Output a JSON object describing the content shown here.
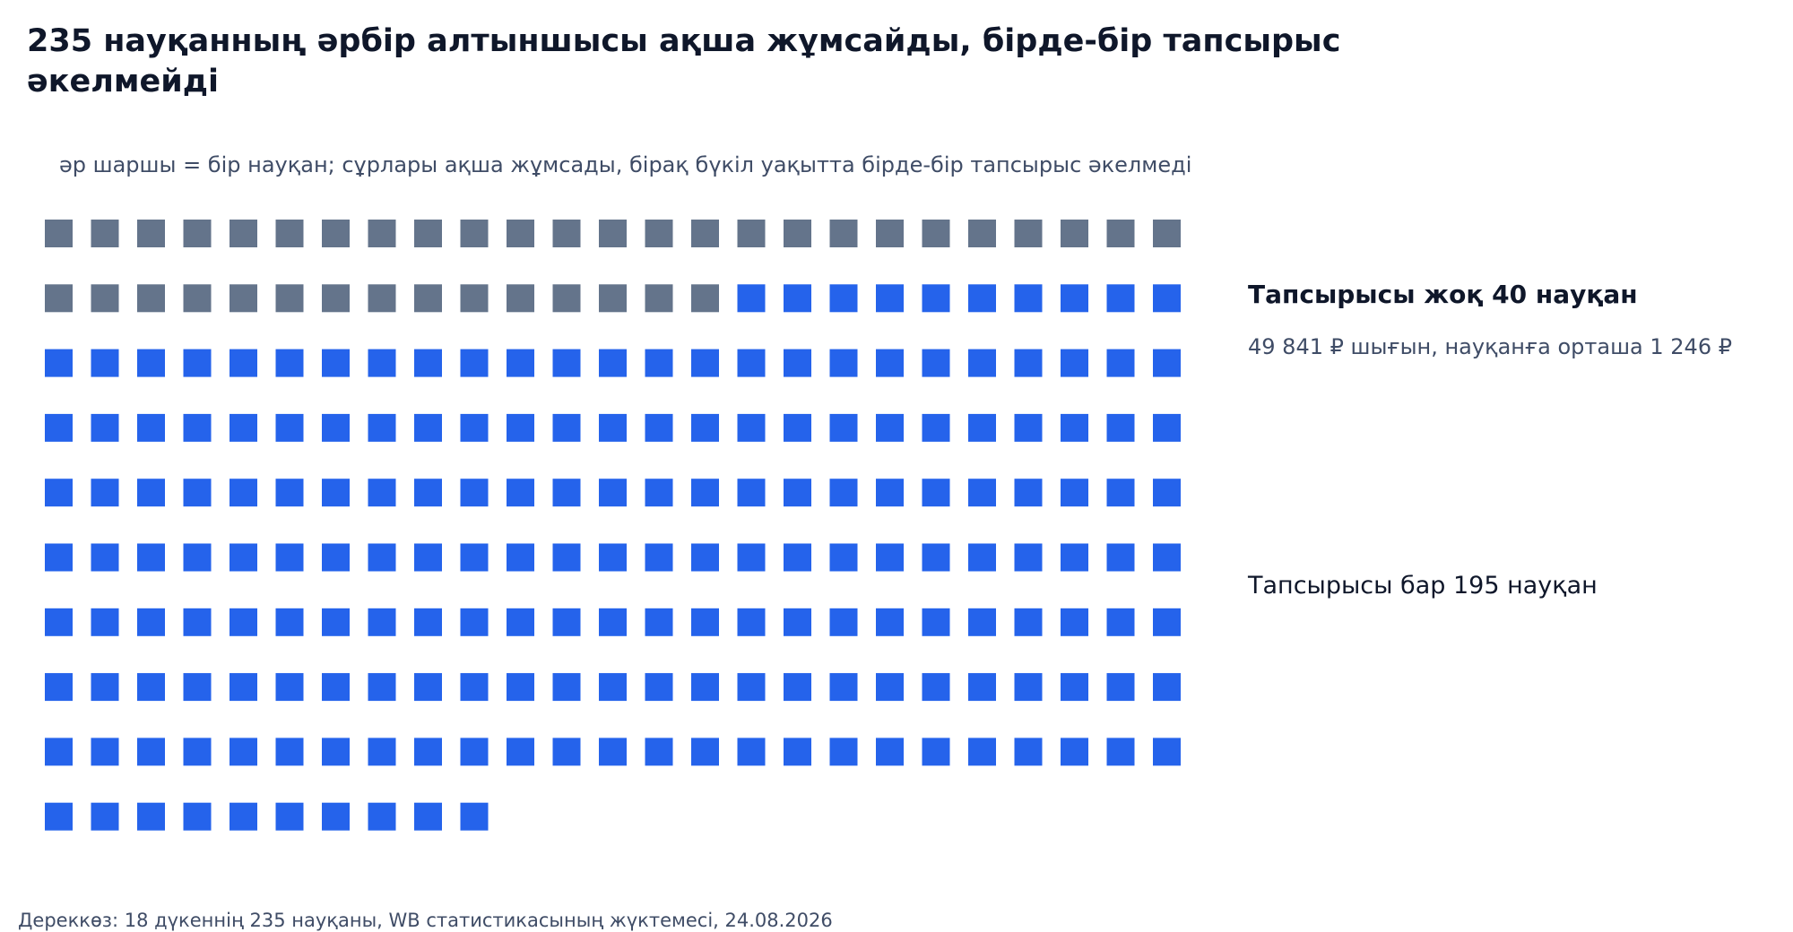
{
  "header": {
    "title": "235 науқанның әрбір алтыншысы ақша жұмсайды, бірде-бір тапсырыс әкелмейді",
    "subtitle": "әр шаршы = бір науқан; сұрлары ақша жұмсады, бірақ бүкіл уақытта бірде-бір тапсырыс әкелмеді"
  },
  "legend": {
    "no_orders_title": "Тапсырысы жоқ 40 науқан",
    "no_orders_detail": "49 841 ₽ шығын, науқанға орташа 1 246 ₽",
    "with_orders_label": "Тапсырысы бар 195 науқан"
  },
  "footer": {
    "source": "Дереккөз: 18 дүкеннің 235 науқаны, WB статистикасының жүктемесі, 24.08.2026"
  },
  "chart_data": {
    "type": "waffle",
    "total": 235,
    "columns": 25,
    "series": [
      {
        "name": "Тапсырысы жоқ 40 науқан",
        "count": 40,
        "color": "#64748b"
      },
      {
        "name": "Тапсырысы бар 195 науқан",
        "count": 195,
        "color": "#2563eb"
      }
    ]
  }
}
